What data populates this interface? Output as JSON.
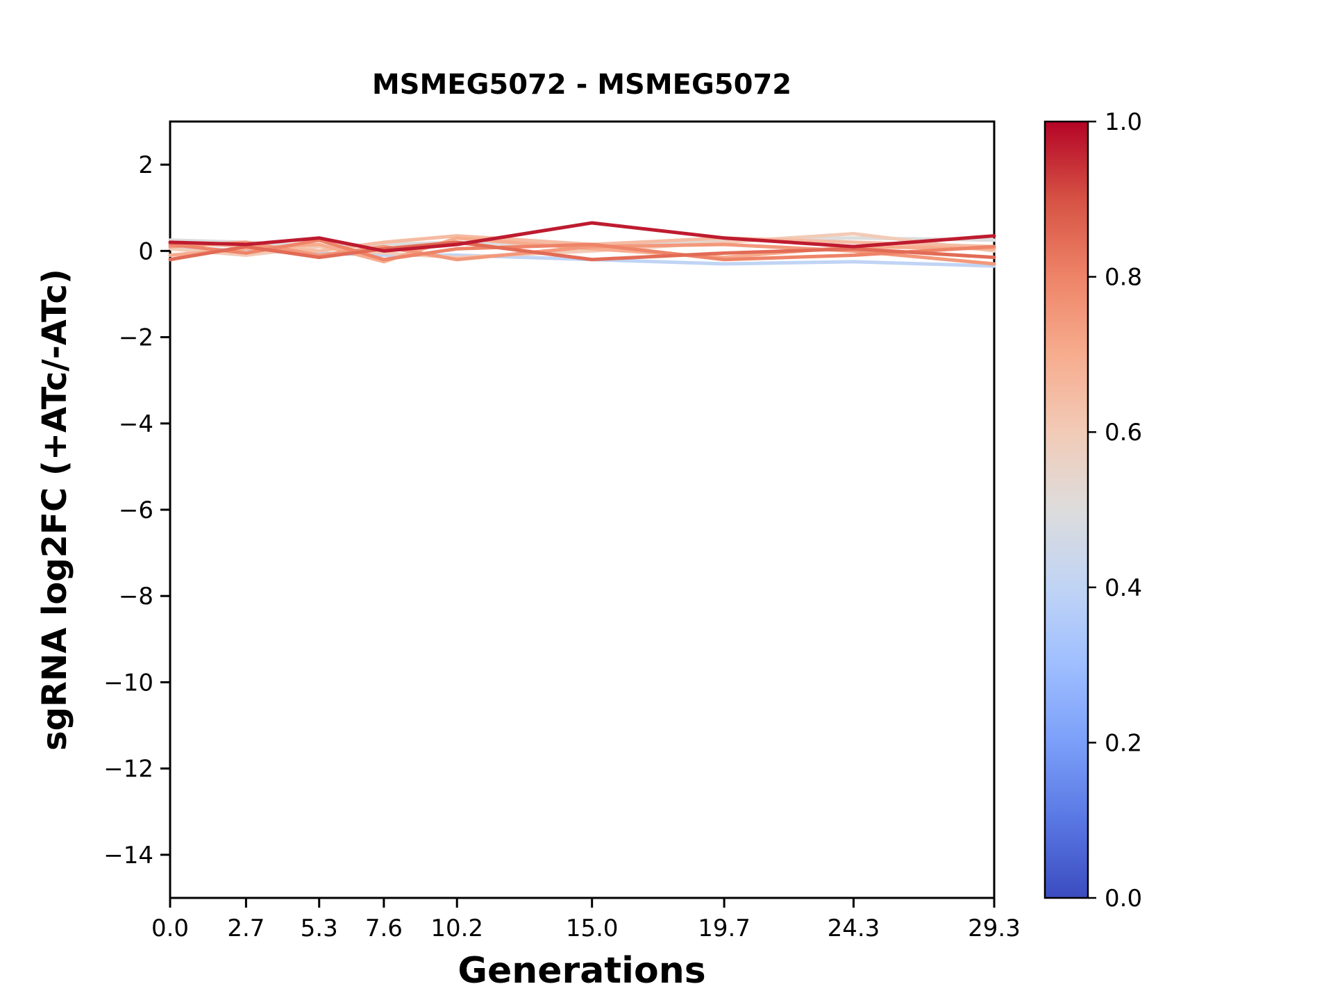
{
  "figure": {
    "background_color": "#ffffff"
  },
  "chart_data": {
    "type": "line",
    "title": "MSMEG5072 - MSMEG5072",
    "xlabel": "Generations",
    "ylabel": "sgRNA log2FC (+ATc/-ATc)",
    "grid": false,
    "xlim": [
      0,
      29.3
    ],
    "ylim": [
      -15,
      3
    ],
    "x": [
      0.0,
      2.7,
      5.3,
      7.6,
      10.2,
      15.0,
      19.7,
      24.3,
      29.3
    ],
    "xtick_values": [
      0.0,
      2.7,
      5.3,
      7.6,
      10.2,
      15.0,
      19.7,
      24.3,
      29.3
    ],
    "xtick_labels": [
      "0.0",
      "2.7",
      "5.3",
      "7.6",
      "10.2",
      "15.0",
      "19.7",
      "24.3",
      "29.3"
    ],
    "ytick_values": [
      2,
      0,
      -2,
      -4,
      -6,
      -8,
      -10,
      -12,
      -14
    ],
    "ytick_labels": [
      "2",
      "0",
      "−2",
      "−4",
      "−6",
      "−8",
      "−10",
      "−12",
      "−14"
    ],
    "series": [
      {
        "colormap_value": 0.4,
        "values": [
          0.1,
          0.0,
          -0.05,
          -0.1,
          -0.1,
          -0.2,
          -0.3,
          -0.25,
          -0.35
        ]
      },
      {
        "colormap_value": 0.5,
        "values": [
          0.25,
          0.2,
          0.1,
          0.15,
          0.2,
          0.1,
          0.25,
          0.3,
          0.25
        ]
      },
      {
        "colormap_value": 0.6,
        "values": [
          0.05,
          -0.1,
          0.1,
          -0.05,
          -0.15,
          0.0,
          0.2,
          0.4,
          0.0
        ]
      },
      {
        "colormap_value": 0.65,
        "values": [
          0.2,
          0.1,
          0.0,
          0.2,
          0.35,
          0.15,
          0.3,
          0.2,
          0.1
        ]
      },
      {
        "colormap_value": 0.7,
        "values": [
          -0.1,
          0.05,
          0.15,
          -0.25,
          0.3,
          0.05,
          -0.15,
          0.1,
          0.05
        ]
      },
      {
        "colormap_value": 0.75,
        "values": [
          0.1,
          0.2,
          -0.1,
          0.1,
          -0.2,
          0.1,
          0.15,
          0.0,
          -0.3
        ]
      },
      {
        "colormap_value": 0.8,
        "values": [
          0.15,
          -0.05,
          0.25,
          -0.2,
          0.05,
          0.15,
          -0.2,
          -0.1,
          0.1
        ]
      },
      {
        "colormap_value": 0.85,
        "values": [
          -0.2,
          0.1,
          -0.15,
          0.05,
          0.2,
          -0.2,
          -0.05,
          0.05,
          -0.15
        ]
      },
      {
        "colormap_value": 0.97,
        "values": [
          0.2,
          0.15,
          0.3,
          0.0,
          0.15,
          0.65,
          0.3,
          0.1,
          0.35
        ]
      }
    ],
    "colorbar": {
      "colormap": "coolwarm",
      "range": [
        0.0,
        1.0
      ],
      "tick_values": [
        1.0,
        0.8,
        0.6,
        0.4,
        0.2,
        0.0
      ],
      "tick_labels": [
        "1.0",
        "0.8",
        "0.6",
        "0.4",
        "0.2",
        "0.0"
      ]
    }
  },
  "colors": {
    "axis": "#000000",
    "plot_background": "#ffffff",
    "colormap_stops": [
      [
        0.0,
        "#3b4cc0"
      ],
      [
        0.1,
        "#5977e3"
      ],
      [
        0.2,
        "#7b9ff9"
      ],
      [
        0.3,
        "#9ebeff"
      ],
      [
        0.4,
        "#c0d4f5"
      ],
      [
        0.5,
        "#dddcdc"
      ],
      [
        0.6,
        "#f2cbb7"
      ],
      [
        0.7,
        "#f7ac8e"
      ],
      [
        0.8,
        "#ee8468"
      ],
      [
        0.9,
        "#d65244"
      ],
      [
        1.0,
        "#b40426"
      ]
    ]
  }
}
